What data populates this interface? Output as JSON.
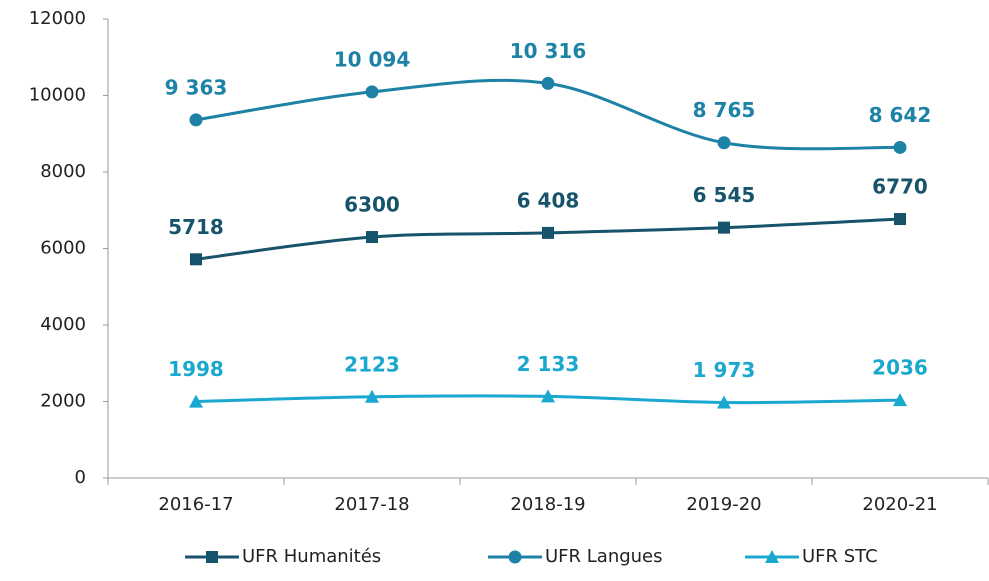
{
  "chart_data": {
    "type": "line",
    "categories": [
      "2016-17",
      "2017-18",
      "2018-19",
      "2019-20",
      "2020-21"
    ],
    "series": [
      {
        "name": "UFR Humanités",
        "color": "#17536a",
        "marker": "square",
        "values": [
          5718,
          6300,
          6408,
          6545,
          6770
        ],
        "value_labels": [
          "5718",
          "6300",
          "6 408",
          "6 545",
          "6770"
        ]
      },
      {
        "name": "UFR Langues",
        "color": "#1e82a6",
        "marker": "circle",
        "values": [
          9363,
          10094,
          10316,
          8765,
          8642
        ],
        "value_labels": [
          "9 363",
          "10 094",
          "10 316",
          "8 765",
          "8 642"
        ]
      },
      {
        "name": "UFR STC",
        "color": "#1aa7d0",
        "marker": "triangle",
        "values": [
          1998,
          2123,
          2133,
          1973,
          2036
        ],
        "value_labels": [
          "1998",
          "2123",
          "2 133",
          "1 973",
          "2036"
        ]
      }
    ],
    "ylim": [
      0,
      12000
    ],
    "yticks": [
      0,
      2000,
      4000,
      6000,
      8000,
      10000,
      12000
    ],
    "smooth": true,
    "legend": "bottom"
  }
}
